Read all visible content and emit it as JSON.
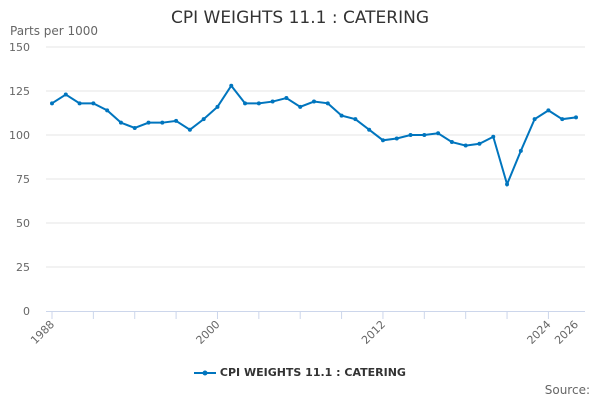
{
  "chart_data": {
    "type": "line",
    "title": "CPI WEIGHTS 11.1 : CATERING",
    "ylabel": "Parts per 1000",
    "xlabel": "",
    "ylim": [
      0,
      150
    ],
    "yticks": [
      0,
      25,
      50,
      75,
      100,
      125,
      150
    ],
    "xtick_labels": [
      1988,
      2000,
      2012,
      2024,
      2026
    ],
    "grid": true,
    "legend_placement": "bottom",
    "x": [
      1988,
      1989,
      1990,
      1991,
      1992,
      1993,
      1994,
      1995,
      1996,
      1997,
      1998,
      1999,
      2000,
      2001,
      2002,
      2003,
      2004,
      2005,
      2006,
      2007,
      2008,
      2009,
      2010,
      2011,
      2012,
      2013,
      2014,
      2015,
      2016,
      2017,
      2018,
      2019,
      2020,
      2021,
      2022,
      2023,
      2024,
      2025,
      2026
    ],
    "series": [
      {
        "name": "CPI WEIGHTS 11.1 : CATERING",
        "color": "#0075be",
        "values": [
          118,
          123,
          118,
          118,
          114,
          107,
          104,
          107,
          107,
          108,
          103,
          109,
          116,
          128,
          118,
          118,
          119,
          121,
          116,
          119,
          118,
          111,
          109,
          103,
          97,
          98,
          100,
          100,
          101,
          96,
          94,
          95,
          99,
          72,
          91,
          109,
          114,
          109,
          110
        ]
      }
    ]
  },
  "source_label": "Source:"
}
